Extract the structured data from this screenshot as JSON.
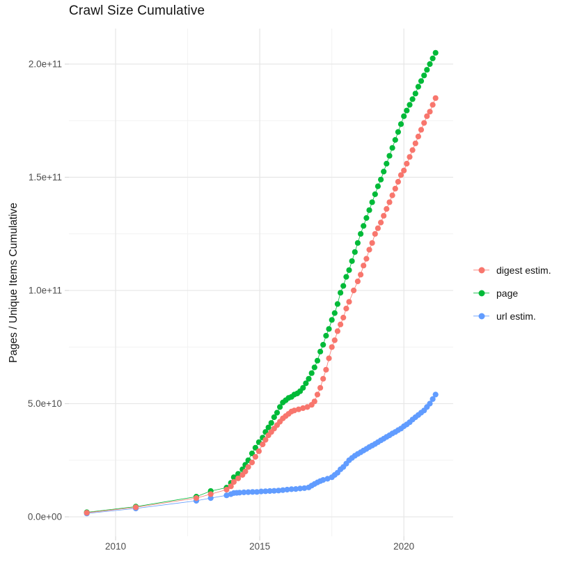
{
  "page_title": "Crawl Size Cumulative",
  "colors": {
    "digest": "#F8766D",
    "page": "#00BA38",
    "url": "#619CFF",
    "grid_major": "#E6E6E6",
    "grid_minor": "#F2F2F2",
    "tick_mark": "#D9D9D9",
    "tick_label": "#4D4D4D",
    "text": "#131313",
    "background": "#FFFFFF"
  },
  "chart_data": {
    "type": "scatter",
    "title": "Crawl Size Cumulative",
    "xlabel": "",
    "ylabel": "Pages / Unique Items Cumulative",
    "xlim": [
      2008.38,
      2021.71
    ],
    "ylim": [
      -8600000000.0,
      215700000000.0
    ],
    "x_ticks": [
      2010,
      2015,
      2020
    ],
    "x_tick_labels": [
      "2010",
      "2015",
      "2020"
    ],
    "x_minor": [
      2012.5,
      2017.5
    ],
    "y_ticks": [
      0,
      50000000000.0,
      100000000000.0,
      150000000000.0,
      200000000000.0
    ],
    "y_tick_labels": [
      "0.0e+00",
      "5.0e+10",
      "1.0e+11",
      "1.5e+11",
      "2.0e+11"
    ],
    "y_minor": [
      25000000000.0,
      75000000000.0,
      125000000000.0,
      175000000000.0
    ],
    "grid": true,
    "legend_position": "right",
    "point_radius": 4.1,
    "line_width": 0.8,
    "series": [
      {
        "name": "digest estim.",
        "color": "#F8766D",
        "points": [
          [
            2009.0,
            1800000000.0
          ],
          [
            2010.7,
            4200000000.0
          ],
          [
            2012.8,
            8300000000.0
          ],
          [
            2013.3,
            10000000000.0
          ],
          [
            2013.85,
            12000000000.0
          ],
          [
            2014.0,
            13500000000.0
          ],
          [
            2014.1,
            15400000000.0
          ],
          [
            2014.25,
            17000000000.0
          ],
          [
            2014.4,
            18500000000.0
          ],
          [
            2014.5,
            20000000000.0
          ],
          [
            2014.6,
            22000000000.0
          ],
          [
            2014.73,
            24000000000.0
          ],
          [
            2014.85,
            26500000000.0
          ],
          [
            2014.97,
            29000000000.0
          ],
          [
            2015.1,
            32000000000.0
          ],
          [
            2015.2,
            34000000000.0
          ],
          [
            2015.3,
            36000000000.0
          ],
          [
            2015.4,
            37500000000.0
          ],
          [
            2015.5,
            39000000000.0
          ],
          [
            2015.6,
            40500000000.0
          ],
          [
            2015.7,
            42000000000.0
          ],
          [
            2015.8,
            43500000000.0
          ],
          [
            2015.9,
            44500000000.0
          ],
          [
            2016.0,
            45500000000.0
          ],
          [
            2016.1,
            46500000000.0
          ],
          [
            2016.2,
            47000000000.0
          ],
          [
            2016.35,
            47500000000.0
          ],
          [
            2016.5,
            48000000000.0
          ],
          [
            2016.65,
            48500000000.0
          ],
          [
            2016.8,
            49500000000.0
          ],
          [
            2016.9,
            51000000000.0
          ],
          [
            2017.0,
            54000000000.0
          ],
          [
            2017.1,
            57000000000.0
          ],
          [
            2017.2,
            61000000000.0
          ],
          [
            2017.3,
            65000000000.0
          ],
          [
            2017.4,
            70000000000.0
          ],
          [
            2017.5,
            75000000000.0
          ],
          [
            2017.6,
            78000000000.0
          ],
          [
            2017.7,
            82000000000.0
          ],
          [
            2017.8,
            85000000000.0
          ],
          [
            2017.9,
            88000000000.0
          ],
          [
            2018.0,
            92000000000.0
          ],
          [
            2018.1,
            95000000000.0
          ],
          [
            2018.26,
            100000000000.0
          ],
          [
            2018.4,
            104000000000.0
          ],
          [
            2018.5,
            107000000000.0
          ],
          [
            2018.6,
            111000000000.0
          ],
          [
            2018.7,
            114000000000.0
          ],
          [
            2018.8,
            118000000000.0
          ],
          [
            2018.9,
            121000000000.0
          ],
          [
            2019.0,
            125000000000.0
          ],
          [
            2019.1,
            127500000000.0
          ],
          [
            2019.2,
            130000000000.0
          ],
          [
            2019.3,
            133000000000.0
          ],
          [
            2019.4,
            136000000000.0
          ],
          [
            2019.5,
            139000000000.0
          ],
          [
            2019.6,
            142000000000.0
          ],
          [
            2019.7,
            145000000000.0
          ],
          [
            2019.8,
            148000000000.0
          ],
          [
            2019.9,
            151000000000.0
          ],
          [
            2020.0,
            153000000000.0
          ],
          [
            2020.1,
            156000000000.0
          ],
          [
            2020.2,
            159000000000.0
          ],
          [
            2020.3,
            162000000000.0
          ],
          [
            2020.4,
            165000000000.0
          ],
          [
            2020.5,
            168000000000.0
          ],
          [
            2020.6,
            171000000000.0
          ],
          [
            2020.7,
            174000000000.0
          ],
          [
            2020.8,
            177000000000.0
          ],
          [
            2020.9,
            179000000000.0
          ],
          [
            2021.0,
            182000000000.0
          ],
          [
            2021.1,
            185000000000.0
          ]
        ]
      },
      {
        "name": "page",
        "color": "#00BA38",
        "points": [
          [
            2009.0,
            2000000000.0
          ],
          [
            2010.7,
            4500000000.0
          ],
          [
            2012.8,
            8900000000.0
          ],
          [
            2013.3,
            11400000000.0
          ],
          [
            2013.85,
            12900000000.0
          ],
          [
            2014.0,
            15000000000.0
          ],
          [
            2014.1,
            17500000000.0
          ],
          [
            2014.25,
            19000000000.0
          ],
          [
            2014.4,
            21000000000.0
          ],
          [
            2014.5,
            23000000000.0
          ],
          [
            2014.6,
            25000000000.0
          ],
          [
            2014.73,
            28000000000.0
          ],
          [
            2014.85,
            30500000000.0
          ],
          [
            2014.97,
            33000000000.0
          ],
          [
            2015.1,
            35000000000.0
          ],
          [
            2015.2,
            37500000000.0
          ],
          [
            2015.3,
            39500000000.0
          ],
          [
            2015.4,
            41500000000.0
          ],
          [
            2015.5,
            44000000000.0
          ],
          [
            2015.6,
            46000000000.0
          ],
          [
            2015.7,
            48500000000.0
          ],
          [
            2015.8,
            50500000000.0
          ],
          [
            2015.9,
            51500000000.0
          ],
          [
            2016.0,
            52500000000.0
          ],
          [
            2016.1,
            53000000000.0
          ],
          [
            2016.2,
            54000000000.0
          ],
          [
            2016.3,
            54500000000.0
          ],
          [
            2016.4,
            55500000000.0
          ],
          [
            2016.5,
            57000000000.0
          ],
          [
            2016.6,
            59000000000.0
          ],
          [
            2016.7,
            61000000000.0
          ],
          [
            2016.8,
            63500000000.0
          ],
          [
            2016.9,
            66000000000.0
          ],
          [
            2017.0,
            69000000000.0
          ],
          [
            2017.1,
            73000000000.0
          ],
          [
            2017.2,
            76000000000.0
          ],
          [
            2017.3,
            80000000000.0
          ],
          [
            2017.4,
            83000000000.0
          ],
          [
            2017.5,
            87000000000.0
          ],
          [
            2017.6,
            90000000000.0
          ],
          [
            2017.7,
            94000000000.0
          ],
          [
            2017.8,
            99000000000.0
          ],
          [
            2017.9,
            102000000000.0
          ],
          [
            2018.0,
            106000000000.0
          ],
          [
            2018.1,
            109000000000.0
          ],
          [
            2018.2,
            113000000000.0
          ],
          [
            2018.3,
            117000000000.0
          ],
          [
            2018.4,
            121000000000.0
          ],
          [
            2018.5,
            125000000000.0
          ],
          [
            2018.6,
            128500000000.0
          ],
          [
            2018.7,
            132000000000.0
          ],
          [
            2018.8,
            135500000000.0
          ],
          [
            2018.9,
            139000000000.0
          ],
          [
            2019.0,
            142500000000.0
          ],
          [
            2019.1,
            146000000000.0
          ],
          [
            2019.2,
            149000000000.0
          ],
          [
            2019.3,
            152500000000.0
          ],
          [
            2019.4,
            156000000000.0
          ],
          [
            2019.5,
            159500000000.0
          ],
          [
            2019.6,
            163000000000.0
          ],
          [
            2019.7,
            166500000000.0
          ],
          [
            2019.8,
            170000000000.0
          ],
          [
            2019.9,
            173500000000.0
          ],
          [
            2020.0,
            177000000000.0
          ],
          [
            2020.1,
            179500000000.0
          ],
          [
            2020.2,
            182000000000.0
          ],
          [
            2020.3,
            184500000000.0
          ],
          [
            2020.4,
            187000000000.0
          ],
          [
            2020.5,
            190000000000.0
          ],
          [
            2020.6,
            192500000000.0
          ],
          [
            2020.7,
            195000000000.0
          ],
          [
            2020.8,
            197500000000.0
          ],
          [
            2020.9,
            200000000000.0
          ],
          [
            2021.0,
            202500000000.0
          ],
          [
            2021.1,
            205000000000.0
          ]
        ]
      },
      {
        "name": "url estim.",
        "color": "#619CFF",
        "points": [
          [
            2009.0,
            1500000000.0
          ],
          [
            2010.7,
            3700000000.0
          ],
          [
            2012.8,
            7100000000.0
          ],
          [
            2013.3,
            8300000000.0
          ],
          [
            2013.85,
            9500000000.0
          ],
          [
            2014.0,
            10000000000.0
          ],
          [
            2014.1,
            10500000000.0
          ],
          [
            2014.2,
            10600000000.0
          ],
          [
            2014.3,
            10700000000.0
          ],
          [
            2014.45,
            10800000000.0
          ],
          [
            2014.6,
            10900000000.0
          ],
          [
            2014.75,
            11000000000.0
          ],
          [
            2014.9,
            11000000000.0
          ],
          [
            2015.05,
            11200000000.0
          ],
          [
            2015.2,
            11300000000.0
          ],
          [
            2015.35,
            11400000000.0
          ],
          [
            2015.5,
            11500000000.0
          ],
          [
            2015.65,
            11600000000.0
          ],
          [
            2015.8,
            11800000000.0
          ],
          [
            2015.95,
            12000000000.0
          ],
          [
            2016.1,
            12200000000.0
          ],
          [
            2016.25,
            12300000000.0
          ],
          [
            2016.4,
            12500000000.0
          ],
          [
            2016.55,
            12700000000.0
          ],
          [
            2016.7,
            13000000000.0
          ],
          [
            2016.8,
            13800000000.0
          ],
          [
            2016.9,
            14500000000.0
          ],
          [
            2017.0,
            15200000000.0
          ],
          [
            2017.1,
            15800000000.0
          ],
          [
            2017.2,
            16300000000.0
          ],
          [
            2017.35,
            16800000000.0
          ],
          [
            2017.5,
            17500000000.0
          ],
          [
            2017.6,
            18500000000.0
          ],
          [
            2017.7,
            19500000000.0
          ],
          [
            2017.8,
            21000000000.0
          ],
          [
            2017.9,
            22000000000.0
          ],
          [
            2018.0,
            23500000000.0
          ],
          [
            2018.1,
            25000000000.0
          ],
          [
            2018.2,
            26000000000.0
          ],
          [
            2018.3,
            27000000000.0
          ],
          [
            2018.4,
            27800000000.0
          ],
          [
            2018.5,
            28500000000.0
          ],
          [
            2018.6,
            29300000000.0
          ],
          [
            2018.7,
            30000000000.0
          ],
          [
            2018.8,
            30800000000.0
          ],
          [
            2018.9,
            31500000000.0
          ],
          [
            2019.0,
            32200000000.0
          ],
          [
            2019.1,
            33000000000.0
          ],
          [
            2019.2,
            33800000000.0
          ],
          [
            2019.3,
            34500000000.0
          ],
          [
            2019.4,
            35300000000.0
          ],
          [
            2019.5,
            36000000000.0
          ],
          [
            2019.6,
            36800000000.0
          ],
          [
            2019.7,
            37500000000.0
          ],
          [
            2019.8,
            38300000000.0
          ],
          [
            2019.9,
            39000000000.0
          ],
          [
            2020.0,
            40000000000.0
          ],
          [
            2020.1,
            40800000000.0
          ],
          [
            2020.2,
            41800000000.0
          ],
          [
            2020.3,
            43000000000.0
          ],
          [
            2020.4,
            44000000000.0
          ],
          [
            2020.5,
            45000000000.0
          ],
          [
            2020.6,
            46000000000.0
          ],
          [
            2020.7,
            47000000000.0
          ],
          [
            2020.8,
            48500000000.0
          ],
          [
            2020.9,
            50000000000.0
          ],
          [
            2021.0,
            52000000000.0
          ],
          [
            2021.1,
            54000000000.0
          ]
        ]
      }
    ]
  },
  "legend": {
    "items": [
      {
        "label": "digest estim.",
        "color": "#F8766D"
      },
      {
        "label": "page",
        "color": "#00BA38"
      },
      {
        "label": "url estim.",
        "color": "#619CFF"
      }
    ]
  }
}
